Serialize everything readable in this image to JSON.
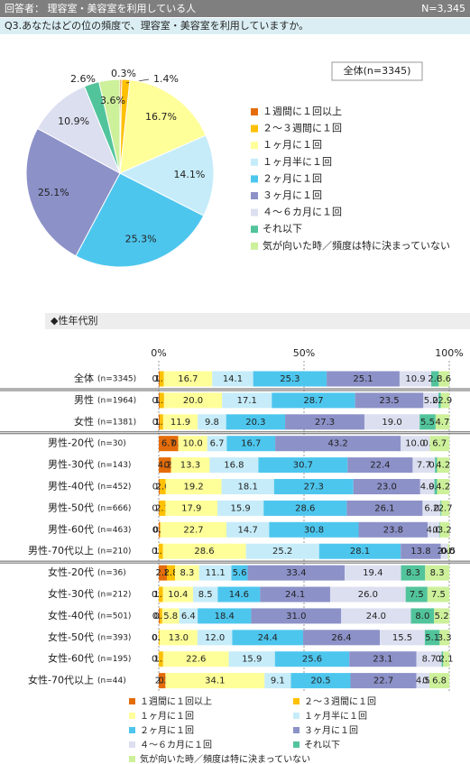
{
  "header": {
    "respondents": "回答者： 理容室・美容室を利用している人",
    "n": "N=3,345"
  },
  "question": "Q3.あなたはどの位の頻度で、理容室・美容室を利用していますか。",
  "section": "◆性年代別",
  "chart_data": [
    {
      "type": "pie",
      "title": "全体(n=3345)",
      "categories": [
        "１週間に１回以上",
        "２～３週間に１回",
        "１ヶ月に１回",
        "１ヶ月半に１回",
        "２ヶ月に１回",
        "３ヶ月に１回",
        "４～６カ月に１回",
        "それ以下",
        "気が向いた時／頻度は特に決まっていない"
      ],
      "colors": [
        "#e46c0a",
        "#ffc000",
        "#ffff99",
        "#c6ecf9",
        "#4dc6ee",
        "#8c91c8",
        "#dcdff0",
        "#52c49c",
        "#cdf09a"
      ],
      "values": [
        0.3,
        1.4,
        16.7,
        14.1,
        25.3,
        25.1,
        10.9,
        2.6,
        3.6
      ],
      "value_labels": [
        "0.3%",
        "1.4%",
        "16.7%",
        "14.1%",
        "25.3%",
        "25.1%",
        "10.9%",
        "2.6%",
        "3.6%"
      ],
      "legend": "right"
    },
    {
      "type": "bar",
      "orientation": "horizontal",
      "stacked": true,
      "categories": [
        "全体",
        "男性",
        "女性",
        "男性-20代",
        "男性-30代",
        "男性-40代",
        "男性-50代",
        "男性-60代",
        "男性-70代以上",
        "女性-20代",
        "女性-30代",
        "女性-40代",
        "女性-50代",
        "女性-60代",
        "女性-70代以上"
      ],
      "category_notes": [
        "(n=3345)",
        "(n=1964)",
        "(n=1381)",
        "(n=30)",
        "(n=143)",
        "(n=452)",
        "(n=666)",
        "(n=463)",
        "(n=210)",
        "(n=36)",
        "(n=212)",
        "(n=501)",
        "(n=393)",
        "(n=195)",
        "(n=44)"
      ],
      "xlim": [
        0,
        100
      ],
      "xticks": [
        {
          "value": 0,
          "label": "0%"
        },
        {
          "value": 50,
          "label": "50%"
        },
        {
          "value": 100,
          "label": "100%"
        }
      ],
      "grid": true,
      "legend": "bottom",
      "series": [
        {
          "name": "１週間に１回以上",
          "color": "#e46c0a",
          "values": [
            0.3,
            0.3,
            0.4,
            6.7,
            4.2,
            0.4,
            0.2,
            0.4,
            0.0,
            2.8,
            0.0,
            0.4,
            0.0,
            0.0,
            2.3
          ],
          "value_labels": [
            "0.3",
            "0.3",
            "0.4",
            "6.7",
            "4.2",
            "0.4",
            "0.2",
            "0.4",
            "0.0",
            "2.8",
            "0.0",
            "0.4",
            "0.0",
            "0.0",
            "2.3"
          ]
        },
        {
          "name": "２～３週間に１回",
          "color": "#ffc000",
          "values": [
            1.4,
            1.5,
            1.1,
            0.0,
            0.0,
            2.0,
            2.1,
            0.2,
            1.4,
            2.8,
            1.4,
            0.8,
            0.3,
            1.5,
            0.0
          ],
          "value_labels": [
            "1.4",
            "1.5",
            "1.1",
            "0.0",
            "0.0",
            "2.0",
            "2.1",
            "0.2",
            "1.4",
            "2.8",
            "1.4",
            "0.8",
            "0.3",
            "1.5",
            "0.0"
          ]
        },
        {
          "name": "１ヶ月に１回",
          "color": "#ffff99",
          "values": [
            16.7,
            20.0,
            11.9,
            10.0,
            13.3,
            19.2,
            17.9,
            22.7,
            28.6,
            8.3,
            10.4,
            5.8,
            13.0,
            22.6,
            34.1
          ],
          "value_labels": [
            "16.7",
            "20.0",
            "11.9",
            "10.0",
            "13.3",
            "19.2",
            "17.9",
            "22.7",
            "28.6",
            "8.3",
            "10.4",
            "5.8",
            "13.0",
            "22.6",
            "34.1"
          ]
        },
        {
          "name": "１ヶ月半に１回",
          "color": "#c6ecf9",
          "values": [
            14.1,
            17.1,
            9.8,
            6.7,
            16.8,
            18.1,
            15.9,
            14.7,
            25.2,
            11.1,
            8.5,
            6.4,
            12.0,
            15.9,
            9.1
          ],
          "value_labels": [
            "14.1",
            "17.1",
            "9.8",
            "6.7",
            "16.8",
            "18.1",
            "15.9",
            "14.7",
            "25.2",
            "11.1",
            "8.5",
            "6.4",
            "12.0",
            "15.9",
            "9.1"
          ]
        },
        {
          "name": "２ヶ月に１回",
          "color": "#4dc6ee",
          "values": [
            25.3,
            28.7,
            20.3,
            16.7,
            30.7,
            27.3,
            28.6,
            30.8,
            28.1,
            5.6,
            14.6,
            18.4,
            24.4,
            25.6,
            20.5
          ],
          "value_labels": [
            "25.3",
            "28.7",
            "20.3",
            "16.7",
            "30.7",
            "27.3",
            "28.6",
            "30.8",
            "28.1",
            "5.6",
            "14.6",
            "18.4",
            "24.4",
            "25.6",
            "20.5"
          ]
        },
        {
          "name": "３ヶ月に１回",
          "color": "#8c91c8",
          "values": [
            25.1,
            23.5,
            27.3,
            43.2,
            22.4,
            23.0,
            26.1,
            23.8,
            13.8,
            33.4,
            24.1,
            31.0,
            26.4,
            23.1,
            22.7
          ],
          "value_labels": [
            "25.1",
            "23.5",
            "27.3",
            "43.2",
            "22.4",
            "23.0",
            "26.1",
            "23.8",
            "13.8",
            "33.4",
            "24.1",
            "31.0",
            "26.4",
            "23.1",
            "22.7"
          ]
        },
        {
          "name": "４～６カ月に１回",
          "color": "#dcdff0",
          "values": [
            10.9,
            5.2,
            19.0,
            10.0,
            7.7,
            4.9,
            6.2,
            4.0,
            2.4,
            19.4,
            26.0,
            24.0,
            15.5,
            8.7,
            4.5
          ],
          "value_labels": [
            "10.9",
            "5.2",
            "19.0",
            "10.0",
            "7.7",
            "4.9",
            "6.2",
            "4.0",
            "2.4",
            "19.4",
            "26.0",
            "24.0",
            "15.5",
            "8.7",
            "4.5"
          ]
        },
        {
          "name": "それ以下",
          "color": "#52c49c",
          "values": [
            2.6,
            0.8,
            5.5,
            0.0,
            0.7,
            0.9,
            0.3,
            0.2,
            0.0,
            8.3,
            7.5,
            8.0,
            5.1,
            0.5,
            0.0
          ],
          "value_labels": [
            "2.6",
            "0.8",
            "5.5",
            "0.0",
            "0.7",
            "0.9",
            "0.3",
            "0.2",
            "0.0",
            "8.3",
            "7.5",
            "8.0",
            "5.1",
            "0.5",
            "0.0"
          ]
        },
        {
          "name": "気が向いた時／頻度は特に決まっていない",
          "color": "#cdf09a",
          "values": [
            3.6,
            2.9,
            4.7,
            6.7,
            4.2,
            4.2,
            2.7,
            3.2,
            0.5,
            8.3,
            7.5,
            5.2,
            3.3,
            2.1,
            6.8
          ],
          "value_labels": [
            "3.6",
            "2.9",
            "4.7",
            "6.7",
            "4.2",
            "4.2",
            "2.7",
            "3.2",
            "0.5",
            "8.3",
            "7.5",
            "5.2",
            "3.3",
            "2.1",
            "6.8"
          ]
        }
      ]
    }
  ]
}
